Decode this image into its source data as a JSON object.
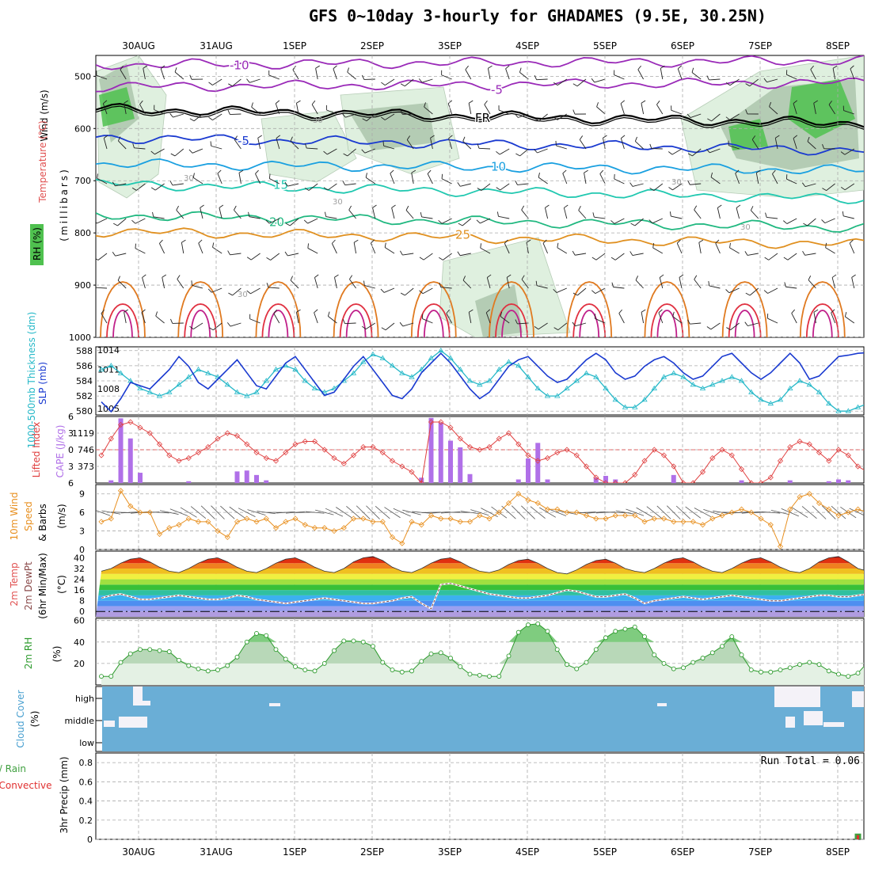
{
  "title": "GFS 0~10day 3-hourly for GHADAMES (9.5E, 30.25N)",
  "dates": [
    "30AUG",
    "31AUG",
    "1SEP",
    "2SEP",
    "3SEP",
    "4SEP",
    "5SEP",
    "6SEP",
    "7SEP",
    "8SEP"
  ],
  "colors": {
    "grid": "#aaaaaa",
    "rh_fill": "#4fc14f",
    "slp": "#1a3ad0",
    "thickness": "#25b8c8",
    "lifted": "#e04040",
    "cape": "#b070e8",
    "wind_speed": "#e89020",
    "rh2m": "#2e9b2e",
    "cloud": "#6aaed6",
    "rain": "#40a040",
    "convective": "#e03030"
  },
  "chart_data": [
    {
      "type": "contour",
      "id": "upper_air",
      "ylabel": "(millibars)",
      "side_labels": [
        "Wind (m/s)",
        "Temperature (°C)",
        "RH (%)"
      ],
      "y_ticks": [
        500,
        600,
        700,
        800,
        900,
        1000
      ],
      "ylim": [
        460,
        1000
      ],
      "contour_labels": [
        "-10",
        "-5",
        "FR",
        "-5",
        "10",
        "5",
        "15",
        "20",
        "25",
        "30",
        "-10",
        "FR",
        "-5",
        "20",
        "25",
        "30"
      ],
      "isotherms": [
        {
          "label": "-10",
          "color": "#9a2ab8",
          "p_start": 478,
          "p_end": 470
        },
        {
          "label": "-5",
          "color": "#9a2ab8",
          "p_start": 520,
          "p_end": 512
        },
        {
          "label": "FR",
          "color": "#000000",
          "p_start": 562,
          "p_end": 590
        },
        {
          "label": "-5",
          "color": "#1a3ad0",
          "p_start": 617,
          "p_end": 642
        },
        {
          "label": "10",
          "color": "#1aa0e0",
          "p_start": 668,
          "p_end": 680
        },
        {
          "label": "15",
          "color": "#20c8b0",
          "p_start": 706,
          "p_end": 735
        },
        {
          "label": "20",
          "color": "#20b880",
          "p_start": 766,
          "p_end": 790
        },
        {
          "label": "25",
          "color": "#e09020",
          "p_start": 797,
          "p_end": 822
        }
      ]
    },
    {
      "type": "line",
      "id": "thickness_slp",
      "ylabel_left": "1000-500mb Thickness (dm)",
      "ylabel_right": "SLP (mb)",
      "left_ticks": [
        580,
        582,
        584,
        586,
        588
      ],
      "right_ticks": [
        1005,
        1008,
        1011,
        1014
      ],
      "ylim_left": [
        579.5,
        588.5
      ],
      "ylim_right": [
        1004,
        1014.5
      ],
      "series": [
        {
          "name": "SLP (mb)",
          "axis": "right",
          "values": [
            1006.0,
            1004.5,
            1006.5,
            1009.0,
            1008.5,
            1008.0,
            1009.5,
            1011.0,
            1013.0,
            1011.5,
            1009.0,
            1008.0,
            1009.5,
            1011.0,
            1012.5,
            1010.5,
            1008.5,
            1008.0,
            1010.0,
            1012.0,
            1013.0,
            1011.0,
            1009.0,
            1007.0,
            1007.5,
            1009.5,
            1011.5,
            1013.0,
            1011.0,
            1009.0,
            1007.0,
            1006.5,
            1008.0,
            1010.5,
            1012.0,
            1013.5,
            1012.0,
            1010.0,
            1008.0,
            1006.5,
            1007.5,
            1009.5,
            1011.5,
            1012.5,
            1013.0,
            1011.5,
            1010.0,
            1009.0,
            1009.5,
            1011.0,
            1012.5,
            1013.5,
            1012.5,
            1010.5,
            1009.5,
            1010.0,
            1011.5,
            1012.5,
            1013.0,
            1012.0,
            1010.5,
            1009.5,
            1010.0,
            1011.5,
            1013.0,
            1013.5,
            1012.0,
            1010.5,
            1009.5,
            1010.5,
            1012.0,
            1013.5,
            1012.0,
            1009.5,
            1010.0,
            1011.5,
            1013.0,
            1013.2,
            1013.5,
            1013.6
          ]
        },
        {
          "name": "1000-500mb Thickness (dm)",
          "axis": "left",
          "values": [
            585.5,
            586.0,
            585.0,
            584.0,
            583.0,
            582.5,
            582.0,
            582.5,
            583.5,
            584.5,
            585.5,
            585.0,
            584.5,
            583.5,
            582.5,
            582.0,
            582.5,
            584.0,
            585.5,
            586.0,
            585.5,
            584.0,
            583.0,
            582.5,
            583.0,
            584.0,
            585.0,
            586.5,
            587.5,
            587.0,
            586.0,
            585.0,
            584.5,
            585.5,
            587.0,
            588.0,
            587.0,
            585.5,
            584.0,
            583.5,
            584.0,
            585.5,
            586.5,
            586.0,
            584.5,
            583.0,
            582.0,
            582.0,
            583.0,
            584.0,
            585.0,
            584.5,
            583.0,
            581.5,
            580.5,
            580.5,
            581.5,
            583.0,
            584.5,
            585.0,
            584.5,
            583.5,
            583.0,
            583.5,
            584.0,
            584.5,
            584.0,
            582.5,
            581.5,
            581.0,
            581.5,
            583.0,
            584.0,
            583.5,
            582.5,
            581.0,
            580.0,
            580.0,
            580.5,
            581.0
          ]
        }
      ]
    },
    {
      "type": "bar+line",
      "id": "lifted_cape",
      "ylabel_left": "Lifted Index",
      "ylabel_right": "CAPE (J/kg)",
      "left_ticks": [
        "6",
        "3",
        "0",
        "3",
        "6"
      ],
      "right_ticks": [
        373,
        746,
        1119
      ],
      "li_range": [
        -6,
        6
      ],
      "cape_range": [
        0,
        1492
      ],
      "series": [
        {
          "name": "Lifted Index",
          "values": [
            1.0,
            -2.0,
            -4.5,
            -5.0,
            -4.0,
            -3.0,
            -1.0,
            1.0,
            2.0,
            1.5,
            0.5,
            -0.5,
            -2.0,
            -3.0,
            -2.5,
            -1.0,
            0.5,
            1.5,
            2.0,
            0.5,
            -1.0,
            -1.5,
            -1.5,
            0.0,
            1.5,
            2.5,
            1.0,
            -0.5,
            -0.5,
            0.5,
            2.0,
            3.0,
            4.0,
            6.0,
            -5.0,
            -5.0,
            -4.0,
            -2.0,
            -0.5,
            0.0,
            -0.5,
            -2.0,
            -3.0,
            -1.0,
            1.0,
            2.0,
            1.5,
            0.5,
            0.0,
            1.0,
            3.0,
            5.0,
            6.0,
            6.0,
            6.0,
            4.5,
            2.0,
            0.0,
            1.0,
            3.0,
            6.0,
            6.0,
            4.0,
            1.5,
            0.0,
            1.0,
            3.5,
            6.0,
            6.0,
            5.0,
            2.0,
            -0.5,
            -1.5,
            -1.0,
            0.5,
            2.0,
            0.0,
            1.0,
            3.0,
            4.0
          ]
        },
        {
          "name": "CAPE (J/kg)",
          "values": [
            0,
            60,
            1450,
            1000,
            230,
            0,
            0,
            0,
            0,
            40,
            0,
            0,
            0,
            0,
            260,
            280,
            180,
            60,
            0,
            0,
            0,
            0,
            0,
            0,
            0,
            0,
            0,
            0,
            0,
            0,
            0,
            0,
            0,
            120,
            1460,
            1350,
            950,
            800,
            200,
            0,
            0,
            0,
            0,
            80,
            550,
            900,
            80,
            0,
            0,
            0,
            0,
            120,
            160,
            80,
            0,
            0,
            0,
            0,
            0,
            180,
            0,
            0,
            0,
            0,
            0,
            0,
            60,
            0,
            0,
            0,
            0,
            60,
            0,
            0,
            0,
            40,
            80,
            60,
            0,
            0
          ]
        }
      ]
    },
    {
      "type": "line",
      "id": "wind10m",
      "ylabel": "10m Wind Speed & Barbs (m/s)",
      "y_ticks": [
        0,
        3,
        6,
        9
      ],
      "ylim": [
        0,
        10.5
      ],
      "series": [
        {
          "name": "10m Wind Speed",
          "values": [
            4.5,
            5.0,
            9.5,
            7.0,
            6.0,
            6.0,
            2.5,
            3.5,
            4.0,
            5.0,
            4.5,
            4.5,
            3.0,
            2.0,
            4.5,
            5.0,
            4.5,
            5.0,
            3.5,
            4.5,
            5.0,
            4.0,
            3.5,
            3.5,
            3.0,
            3.5,
            5.0,
            5.0,
            4.5,
            4.5,
            2.0,
            1.0,
            4.5,
            4.0,
            5.5,
            5.0,
            5.0,
            4.5,
            4.5,
            5.5,
            5.0,
            6.0,
            7.5,
            9.0,
            8.0,
            7.5,
            6.5,
            6.5,
            6.0,
            6.0,
            5.5,
            5.0,
            5.0,
            5.5,
            5.5,
            5.5,
            4.5,
            5.0,
            5.0,
            4.5,
            4.5,
            4.5,
            4.0,
            5.0,
            5.5,
            6.0,
            6.5,
            6.0,
            5.0,
            4.0,
            0.5,
            6.5,
            8.5,
            9.0,
            7.5,
            6.5,
            5.5,
            6.0,
            6.5,
            6.0
          ]
        }
      ]
    },
    {
      "type": "area",
      "id": "temp2m",
      "ylabel": "2m Temp, 2m DewPt (6hr Min/Max) (°C)",
      "y_ticks": [
        0,
        8,
        16,
        24,
        32,
        40
      ],
      "ylim": [
        -4,
        45
      ],
      "series": [
        {
          "name": "2m Temp",
          "values": [
            30,
            32,
            36,
            39,
            40,
            37,
            33,
            30,
            29,
            32,
            36,
            39,
            40,
            37,
            33,
            30,
            29,
            32,
            36,
            39,
            40,
            37,
            33,
            30,
            29,
            32,
            37,
            40,
            41,
            38,
            33,
            30,
            29,
            32,
            36,
            39,
            40,
            37,
            33,
            30,
            29,
            31,
            35,
            38,
            39,
            36,
            32,
            29,
            28,
            31,
            35,
            38,
            39,
            36,
            32,
            30,
            29,
            32,
            36,
            39,
            40,
            37,
            33,
            30,
            29,
            32,
            36,
            39,
            40,
            37,
            33,
            30,
            29,
            32,
            37,
            40,
            41,
            37,
            32,
            30
          ]
        },
        {
          "name": "2m DewPt",
          "values": [
            10,
            12,
            13,
            11,
            9,
            9,
            10,
            11,
            12,
            11,
            10,
            9,
            9,
            10,
            12,
            11,
            9,
            8,
            7,
            6,
            7,
            8,
            9,
            10,
            9,
            8,
            7,
            6,
            6,
            7,
            8,
            10,
            11,
            6,
            2,
            20,
            21,
            19,
            17,
            15,
            13,
            12,
            11,
            10,
            10,
            11,
            12,
            14,
            16,
            15,
            13,
            11,
            11,
            12,
            13,
            10,
            6,
            8,
            9,
            10,
            11,
            10,
            9,
            10,
            11,
            12,
            11,
            10,
            9,
            8,
            8,
            9,
            10,
            11,
            12,
            12,
            11,
            11,
            12,
            13
          ]
        }
      ]
    },
    {
      "type": "area",
      "id": "rh2m",
      "ylabel": "2m RH (%)",
      "y_ticks": [
        20,
        40,
        60
      ],
      "ylim": [
        0,
        62
      ],
      "series": [
        {
          "name": "2m RH",
          "values": [
            8,
            8,
            21,
            29,
            33,
            33,
            32,
            31,
            23,
            18,
            15,
            13,
            14,
            18,
            26,
            40,
            48,
            46,
            33,
            24,
            17,
            14,
            13,
            20,
            32,
            41,
            41,
            40,
            36,
            21,
            14,
            12,
            13,
            22,
            29,
            30,
            25,
            17,
            10,
            9,
            8,
            8,
            27,
            49,
            56,
            57,
            50,
            33,
            19,
            15,
            21,
            33,
            44,
            50,
            52,
            54,
            45,
            28,
            20,
            15,
            16,
            21,
            25,
            30,
            36,
            45,
            28,
            14,
            12,
            12,
            14,
            16,
            19,
            21,
            19,
            13,
            10,
            8,
            11,
            21
          ]
        }
      ]
    },
    {
      "type": "heatmap",
      "id": "cloud_cover",
      "ylabel": "Cloud Cover (%)",
      "y_categories": [
        "high",
        "middle",
        "low"
      ]
    },
    {
      "type": "bar",
      "id": "precip",
      "ylabel": "3hr Precip (mm)",
      "side_labels": [
        "Total / Rain",
        "Convective"
      ],
      "y_ticks": [
        "0",
        "0.2",
        "0.4",
        "0.6",
        "0.8"
      ],
      "ylim": [
        0,
        0.9
      ],
      "run_total": "Run Total = 0.06",
      "values": [
        0,
        0,
        0,
        0,
        0,
        0,
        0,
        0,
        0,
        0,
        0,
        0,
        0,
        0,
        0,
        0,
        0,
        0,
        0,
        0,
        0,
        0,
        0,
        0,
        0,
        0,
        0,
        0,
        0,
        0,
        0,
        0,
        0,
        0,
        0,
        0,
        0,
        0,
        0,
        0,
        0,
        0,
        0,
        0,
        0,
        0,
        0,
        0,
        0,
        0,
        0,
        0,
        0,
        0,
        0,
        0,
        0,
        0,
        0,
        0,
        0,
        0,
        0,
        0,
        0,
        0,
        0,
        0,
        0,
        0,
        0,
        0,
        0,
        0,
        0,
        0,
        0,
        0,
        0.06,
        0
      ]
    }
  ]
}
